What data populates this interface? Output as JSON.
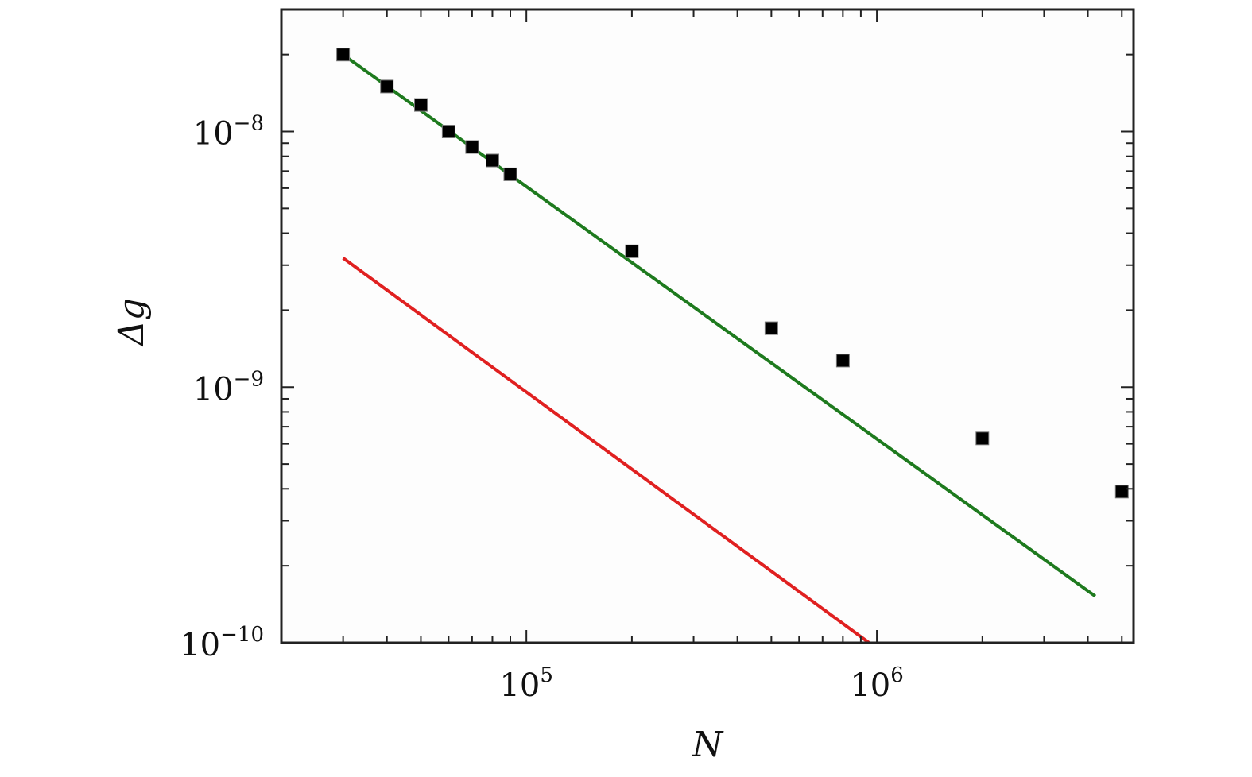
{
  "chart_data": {
    "type": "scatter",
    "title": "",
    "xlabel": "N",
    "ylabel": "Δg",
    "x_scale": "log",
    "y_scale": "log",
    "xlim": [
      20000,
      5400000
    ],
    "ylim": [
      1e-10,
      3e-08
    ],
    "x_ticks": [
      {
        "value": 100000,
        "base": "10",
        "exp": "5"
      },
      {
        "value": 1000000,
        "base": "10",
        "exp": "6"
      }
    ],
    "y_ticks": [
      {
        "value": 1e-10,
        "base": "10",
        "exp": "−10"
      },
      {
        "value": 1e-09,
        "base": "10",
        "exp": "−9"
      },
      {
        "value": 1e-08,
        "base": "10",
        "exp": "−8"
      }
    ],
    "grid": false,
    "series": [
      {
        "kind": "points",
        "color": "#000000",
        "marker": "square",
        "x": [
          30000,
          40000,
          50000,
          60000,
          70000,
          80000,
          90000,
          200000,
          500000,
          800000,
          2000000,
          5000000
        ],
        "y": [
          2e-08,
          1.5e-08,
          1.27e-08,
          1e-08,
          8.7e-09,
          7.7e-09,
          6.8e-09,
          3.4e-09,
          1.7e-09,
          1.27e-09,
          6.3e-10,
          3.9e-10
        ]
      },
      {
        "kind": "line",
        "color": "#1e7a1e",
        "x": [
          30000,
          4200000
        ],
        "y": [
          2e-08,
          1.52e-10
        ]
      },
      {
        "kind": "line",
        "color": "#e02020",
        "x": [
          30000,
          950000
        ],
        "y": [
          3.2e-09,
          1e-10
        ]
      }
    ]
  }
}
